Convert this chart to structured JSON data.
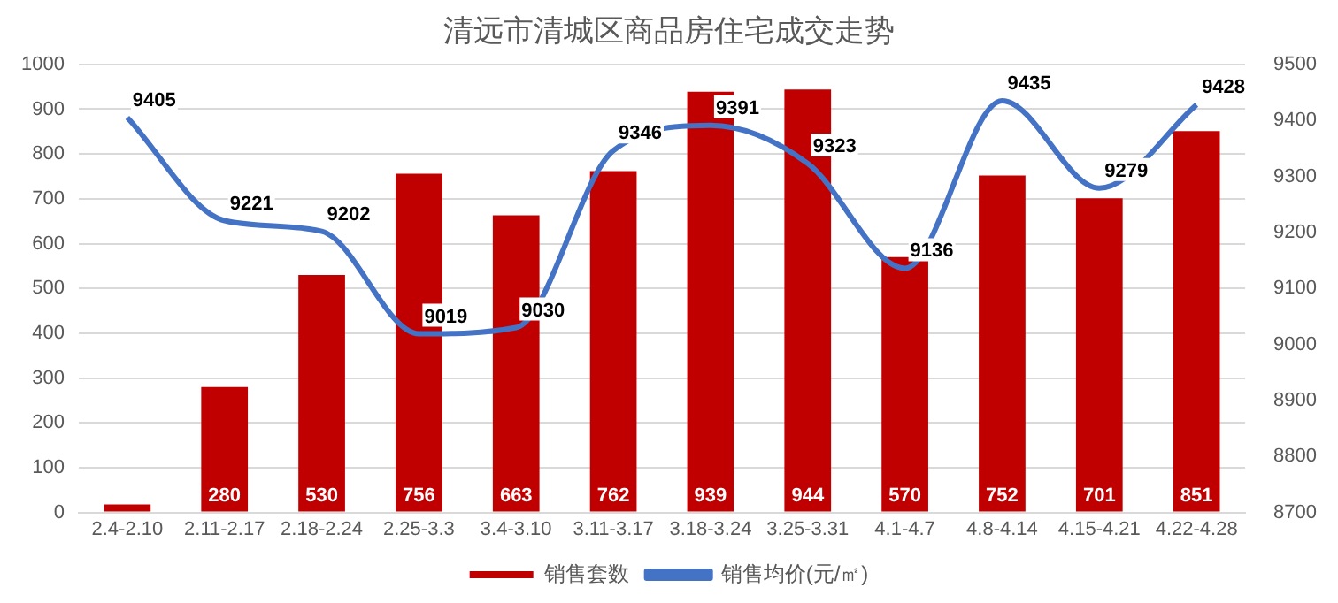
{
  "chart_data": {
    "type": "bar",
    "title": "清远市清城区商品房住宅成交走势",
    "categories": [
      "2.4-2.10",
      "2.11-2.17",
      "2.18-2.24",
      "2.25-3.3",
      "3.4-3.10",
      "3.11-3.17",
      "3.18-3.24",
      "3.25-3.31",
      "4.1-4.7",
      "4.8-4.14",
      "4.15-4.21",
      "4.22-4.28"
    ],
    "series": [
      {
        "name": "销售套数",
        "color": "#c00000",
        "values": [
          18,
          280,
          530,
          756,
          663,
          762,
          939,
          944,
          570,
          752,
          701,
          851
        ],
        "value_labels": [
          null,
          "280",
          "530",
          "756",
          "663",
          "762",
          "939",
          "944",
          "570",
          "752",
          "701",
          "851"
        ]
      },
      {
        "name": "销售均价(元/㎡)",
        "type": "line",
        "axis": "y2",
        "color": "#4472c4",
        "values": [
          9405,
          9221,
          9202,
          9019,
          9030,
          9346,
          9391,
          9323,
          9136,
          9435,
          9279,
          9428
        ],
        "value_labels": [
          "9405",
          "9221",
          "9202",
          "9019",
          "9030",
          "9346",
          "9391",
          "9323",
          "9136",
          "9435",
          "9279",
          "9428"
        ]
      }
    ],
    "ylim": [
      0,
      1000
    ],
    "yticks": [
      0,
      100,
      200,
      300,
      400,
      500,
      600,
      700,
      800,
      900,
      1000
    ],
    "y2lim": [
      8700,
      9500
    ],
    "y2ticks": [
      8700,
      8800,
      8900,
      9000,
      9100,
      9200,
      9300,
      9400,
      9500
    ],
    "grid": "y",
    "legend": "bottom",
    "marker": "none"
  }
}
